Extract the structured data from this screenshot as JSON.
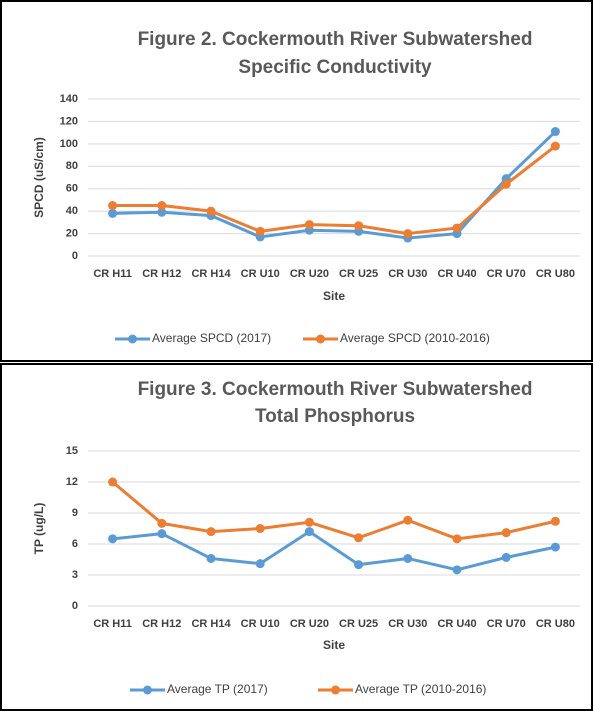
{
  "chart_data": [
    {
      "type": "line",
      "title": [
        "Figure 2. Cockermouth River Subwatershed",
        "Specific Conductivity"
      ],
      "x_label": "Site",
      "y_label": "SPCD (uS/cm)",
      "categories": [
        "CR H11",
        "CR H12",
        "CR H14",
        "CR U10",
        "CR U20",
        "CR U25",
        "CR U30",
        "CR U40",
        "CR U70",
        "CR U80"
      ],
      "series": [
        {
          "name": "Average SPCD (2017)",
          "color": "#5b9bd5",
          "values": [
            38,
            39,
            36,
            17,
            23,
            22,
            16,
            20,
            69,
            111
          ]
        },
        {
          "name": "Average SPCD (2010-2016)",
          "color": "#ed7d31",
          "values": [
            45,
            45,
            40,
            22,
            28,
            27,
            20,
            25,
            64,
            98
          ]
        }
      ],
      "ylim": [
        0,
        140
      ],
      "yticks": [
        0,
        20,
        40,
        60,
        80,
        100,
        120,
        140
      ],
      "grid": true,
      "legend": "bottom"
    },
    {
      "type": "line",
      "title": [
        "Figure 3. Cockermouth River Subwatershed",
        "Total Phosphorus"
      ],
      "x_label": "Site",
      "y_label": "TP (ug/L)",
      "categories": [
        "CR H11",
        "CR H12",
        "CR H14",
        "CR U10",
        "CR U20",
        "CR U25",
        "CR U30",
        "CR U40",
        "CR U70",
        "CR U80"
      ],
      "series": [
        {
          "name": "Average TP (2017)",
          "color": "#5b9bd5",
          "values": [
            6.5,
            7.0,
            4.6,
            4.1,
            7.2,
            4.0,
            4.6,
            3.5,
            4.7,
            5.7
          ]
        },
        {
          "name": "Average TP (2010-2016)",
          "color": "#ed7d31",
          "values": [
            12,
            8.0,
            7.2,
            7.5,
            8.1,
            6.6,
            8.3,
            6.5,
            7.1,
            8.2
          ]
        }
      ],
      "ylim": [
        0,
        15
      ],
      "yticks": [
        0,
        3,
        6,
        9,
        12,
        15
      ],
      "grid": true,
      "legend": "bottom"
    }
  ]
}
